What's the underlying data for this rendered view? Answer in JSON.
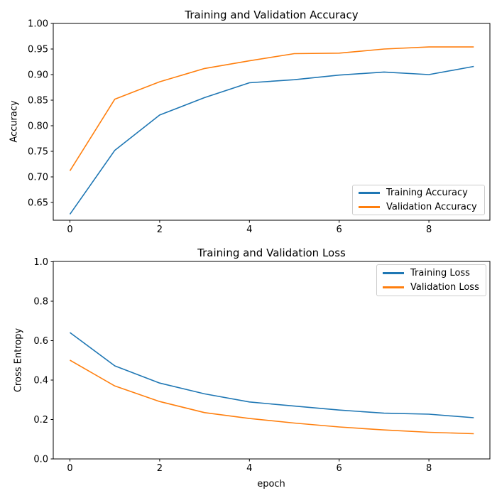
{
  "figure": {
    "background": "#ffffff",
    "accent_colors": {
      "series_blue": "#1f77b4",
      "series_orange": "#ff7f0e"
    }
  },
  "chart_data": [
    {
      "type": "line",
      "title": "Training and Validation Accuracy",
      "ylabel": "Accuracy",
      "xlabel": "",
      "x": [
        0,
        1,
        2,
        3,
        4,
        5,
        6,
        7,
        8,
        9
      ],
      "xticks": [
        0,
        2,
        4,
        6,
        8
      ],
      "xtick_labels": [
        "0",
        "2",
        "4",
        "6",
        "8"
      ],
      "yticks": [
        0.65,
        0.7,
        0.75,
        0.8,
        0.85,
        0.9,
        0.95,
        1.0
      ],
      "ytick_labels": [
        "0.65",
        "0.70",
        "0.75",
        "0.80",
        "0.85",
        "0.90",
        "0.95",
        "1.00"
      ],
      "ylim": [
        0.6153,
        1.0
      ],
      "grid": false,
      "legend_position": "lower right",
      "series": [
        {
          "name": "Training Accuracy",
          "color": "#1f77b4",
          "values": [
            0.627,
            0.752,
            0.821,
            0.855,
            0.884,
            0.89,
            0.899,
            0.905,
            0.9,
            0.916
          ]
        },
        {
          "name": "Validation Accuracy",
          "color": "#ff7f0e",
          "values": [
            0.712,
            0.852,
            0.886,
            0.912,
            0.927,
            0.941,
            0.942,
            0.95,
            0.954,
            0.954
          ]
        }
      ]
    },
    {
      "type": "line",
      "title": "Training and Validation Loss",
      "ylabel": "Cross Entropy",
      "xlabel": "epoch",
      "x": [
        0,
        1,
        2,
        3,
        4,
        5,
        6,
        7,
        8,
        9
      ],
      "xticks": [
        0,
        2,
        4,
        6,
        8
      ],
      "xtick_labels": [
        "0",
        "2",
        "4",
        "6",
        "8"
      ],
      "yticks": [
        0.0,
        0.2,
        0.4,
        0.6,
        0.8,
        1.0
      ],
      "ytick_labels": [
        "0.0",
        "0.2",
        "0.4",
        "0.6",
        "0.8",
        "1.0"
      ],
      "ylim": [
        0.0,
        1.0018
      ],
      "grid": false,
      "legend_position": "upper right",
      "series": [
        {
          "name": "Training Loss",
          "color": "#1f77b4",
          "values": [
            0.641,
            0.472,
            0.385,
            0.33,
            0.289,
            0.268,
            0.248,
            0.232,
            0.227,
            0.209
          ]
        },
        {
          "name": "Validation Loss",
          "color": "#ff7f0e",
          "values": [
            0.501,
            0.37,
            0.291,
            0.235,
            0.205,
            0.182,
            0.162,
            0.147,
            0.135,
            0.128
          ]
        }
      ]
    }
  ]
}
